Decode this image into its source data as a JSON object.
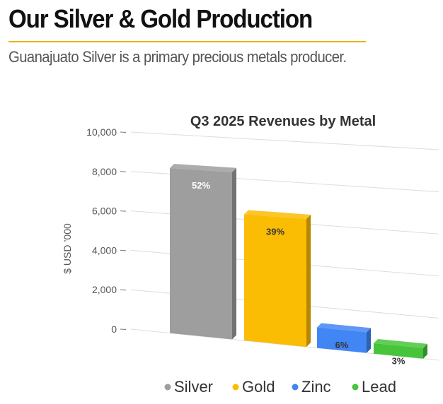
{
  "page": {
    "title": "Our Silver & Gold Production",
    "subtitle": "Guanajuato Silver is a primary precious metals producer."
  },
  "colors": {
    "accent_rule": "#e8b40b"
  },
  "chart_data": {
    "type": "bar",
    "title": "Q3 2025 Revenues by Metal",
    "xlabel": "",
    "ylabel": "$ USD ’000",
    "ylim": [
      0,
      10000
    ],
    "yticks": [
      0,
      2000,
      4000,
      6000,
      8000,
      10000
    ],
    "ytick_labels": [
      "0",
      "2,000",
      "4,000",
      "6,000",
      "8,000",
      "10,000"
    ],
    "categories": [
      "Silver",
      "Gold",
      "Zinc",
      "Lead"
    ],
    "values": [
      8300,
      6250,
      1000,
      500
    ],
    "data_labels": [
      "52%",
      "39%",
      "6%",
      "3%"
    ],
    "colors": [
      "#9e9e9e",
      "#fbbc04",
      "#4285f4",
      "#46c43a"
    ],
    "legend_position": "bottom",
    "grid": true,
    "style": "3d"
  }
}
